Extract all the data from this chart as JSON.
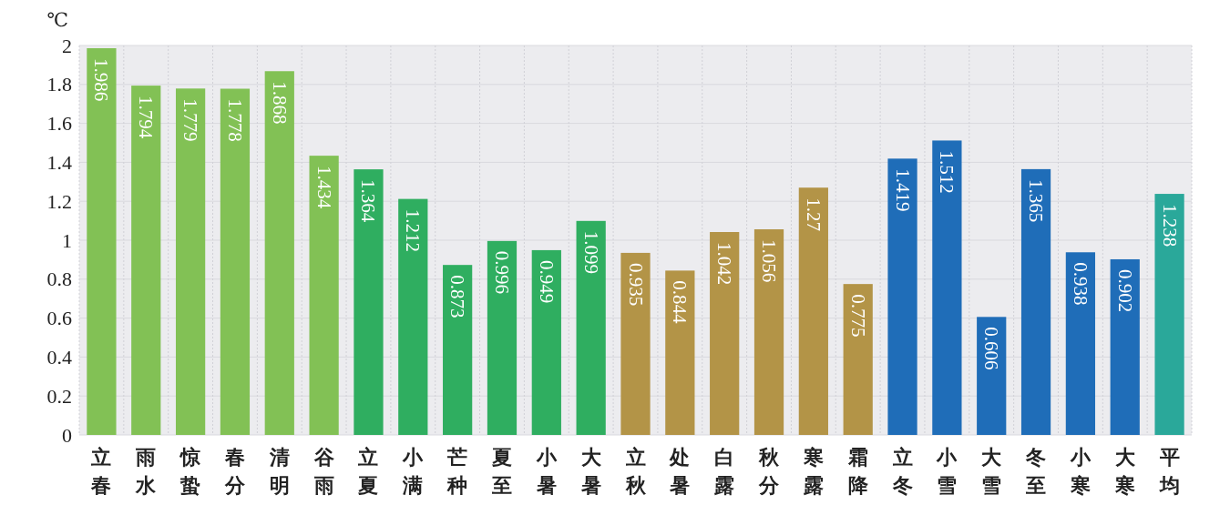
{
  "chart_data": {
    "type": "bar",
    "ylabel": "℃",
    "categories": [
      "立春",
      "雨水",
      "惊蛰",
      "春分",
      "清明",
      "谷雨",
      "立夏",
      "小满",
      "芒种",
      "夏至",
      "小暑",
      "大暑",
      "立秋",
      "处暑",
      "白露",
      "秋分",
      "寒露",
      "霜降",
      "立冬",
      "小雪",
      "大雪",
      "冬至",
      "小寒",
      "大寒",
      "平均"
    ],
    "values": [
      1.986,
      1.794,
      1.779,
      1.778,
      1.868,
      1.434,
      1.364,
      1.212,
      0.873,
      0.996,
      0.949,
      1.099,
      0.935,
      0.844,
      1.042,
      1.056,
      1.27,
      0.775,
      1.419,
      1.512,
      0.606,
      1.365,
      0.938,
      0.902,
      1.238
    ],
    "colors": [
      "#82c155",
      "#82c155",
      "#82c155",
      "#82c155",
      "#82c155",
      "#82c155",
      "#2fae60",
      "#2fae60",
      "#2fae60",
      "#2fae60",
      "#2fae60",
      "#2fae60",
      "#b39447",
      "#b39447",
      "#b39447",
      "#b39447",
      "#b39447",
      "#b39447",
      "#1f6db8",
      "#1f6db8",
      "#1f6db8",
      "#1f6db8",
      "#1f6db8",
      "#1f6db8",
      "#2aa89a"
    ],
    "ylim": [
      0,
      2
    ],
    "yticks": [
      0,
      0.2,
      0.4,
      0.6,
      0.8,
      1,
      1.2,
      1.4,
      1.6,
      1.8,
      2
    ],
    "grid": true,
    "data_labels": true
  }
}
